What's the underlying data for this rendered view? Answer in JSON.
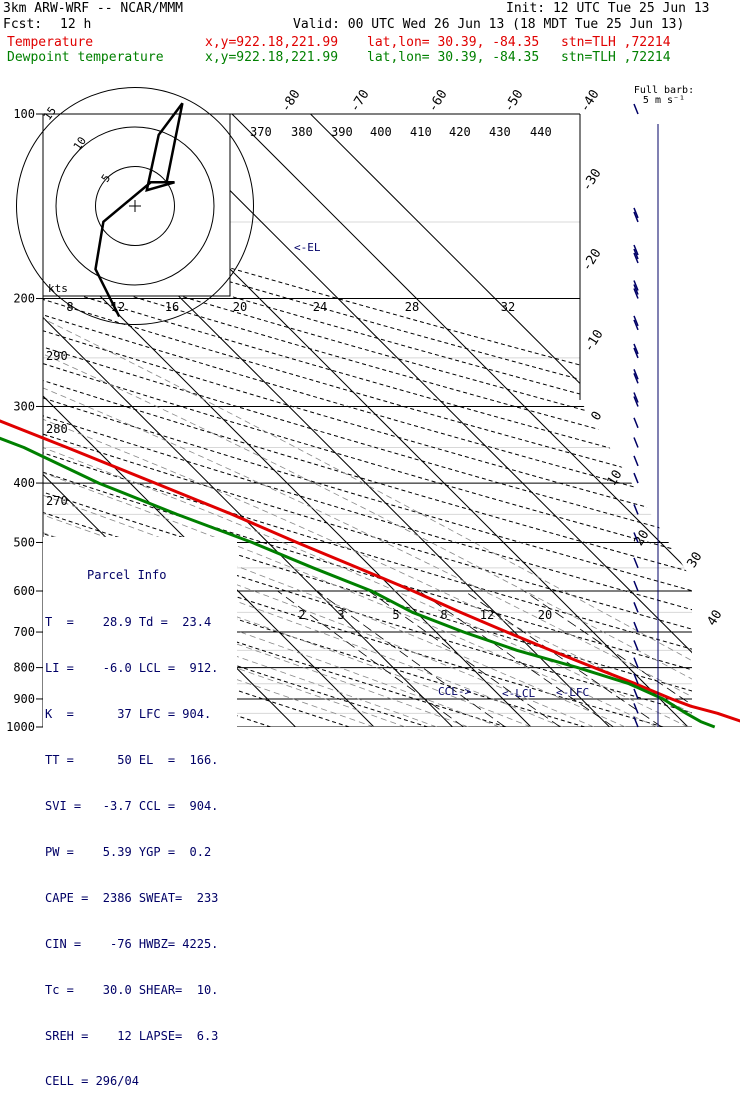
{
  "header": {
    "model": "3km ARW-WRF -- NCAR/MMM",
    "init": "Init: 12 UTC Tue 25 Jun 13",
    "fcst_label": "Fcst:",
    "fcst_value": "12 h",
    "valid": "Valid: 00 UTC Wed 26 Jun 13 (18 MDT Tue 25 Jun 13)",
    "temp_label": "Temperature",
    "dew_label": "Dewpoint temperature",
    "xy": "x,y=922.18,221.99",
    "latlon": "lat,lon= 30.39, -84.35",
    "stn": "stn=TLH ,72214"
  },
  "colors": {
    "temperature": "#e00000",
    "dewpoint": "#008000",
    "text_blue": "#000066",
    "wind": "#000066"
  },
  "parcel_info": {
    "title": "Parcel Info",
    "rows": [
      "T  =    28.9 Td =  23.4",
      "LI =    -6.0 LCL =  912.",
      "K  =      37 LFC = 904.",
      "TT =      50 EL  =  166.",
      "SVI =   -3.7 CCL =  904.",
      "PW =    5.39 YGP =  0.2",
      "CAPE =  2386 SWEAT=  233",
      "CIN =    -76 HWBZ= 4225.",
      "Tc =    30.0 SHEAR=  10.",
      "SREH =    12 LAPSE=  6.3",
      "CELL = 296/04"
    ]
  },
  "barb_legend": {
    "line1": "Full barb:",
    "line2": "5 m s⁻¹"
  },
  "chart_data": {
    "type": "line",
    "title": "",
    "pressure_levels": [
      100,
      200,
      300,
      400,
      500,
      600,
      700,
      800,
      900,
      1000
    ],
    "pressure_tick_labels": [
      "100",
      "200",
      "300",
      "400",
      "500",
      "600",
      "700",
      "800",
      "900",
      "1000"
    ],
    "isotherm_labels": [
      "-80",
      "-70",
      "-60",
      "-50",
      "-40",
      "-30",
      "-20",
      "-10",
      "0",
      "10",
      "20",
      "30",
      "40"
    ],
    "mixing_ratio_labels": [
      "2",
      "3",
      "5",
      "8",
      "12",
      "20"
    ],
    "theta_labels": [
      "290",
      "280",
      "270"
    ],
    "theta_e_labels": [
      "370",
      "380",
      "390",
      "400",
      "410",
      "420",
      "430",
      "440"
    ],
    "annotations": [
      "<-EL",
      "CCL->",
      "<-LCL",
      "<-LFC"
    ],
    "series": [
      {
        "name": "Temperature",
        "points": [
          [
            1000,
            28.9
          ],
          [
            950,
            25.5
          ],
          [
            925,
            23.0
          ],
          [
            900,
            21.5
          ],
          [
            850,
            18.8
          ],
          [
            800,
            15.6
          ],
          [
            750,
            12.3
          ],
          [
            700,
            9.0
          ],
          [
            650,
            5.6
          ],
          [
            600,
            2.3
          ],
          [
            550,
            -1.8
          ],
          [
            500,
            -6.3
          ],
          [
            450,
            -11.0
          ],
          [
            400,
            -16.8
          ],
          [
            350,
            -23.5
          ],
          [
            300,
            -31.5
          ],
          [
            250,
            -41.5
          ],
          [
            200,
            -53.0
          ],
          [
            180,
            -58.0
          ],
          [
            160,
            -64.0
          ],
          [
            150,
            -67.0
          ],
          [
            130,
            -70.0
          ],
          [
            115,
            -70.5
          ],
          [
            100,
            -72.0
          ]
        ]
      },
      {
        "name": "Dewpoint temperature",
        "points": [
          [
            1000,
            23.4
          ],
          [
            980,
            22.3
          ],
          [
            950,
            21.5
          ],
          [
            900,
            20.4
          ],
          [
            850,
            18.0
          ],
          [
            800,
            13.5
          ],
          [
            750,
            8.0
          ],
          [
            700,
            3.5
          ],
          [
            650,
            -0.5
          ],
          [
            600,
            -3.0
          ],
          [
            550,
            -7.5
          ],
          [
            500,
            -12.0
          ],
          [
            450,
            -18.0
          ],
          [
            400,
            -24.0
          ],
          [
            350,
            -29.0
          ],
          [
            300,
            -37.5
          ],
          [
            250,
            -48.5
          ],
          [
            200,
            -63.0
          ],
          [
            180,
            -70.0
          ],
          [
            150,
            -80.0
          ],
          [
            120,
            -88.0
          ],
          [
            100,
            -90.0
          ]
        ]
      }
    ],
    "hodograph": {
      "ring_labels": [
        "5",
        "10",
        "15"
      ],
      "axis_labels": [
        "8",
        "12",
        "16",
        "20",
        "24",
        "28",
        "32"
      ],
      "units": "kts",
      "points": [
        [
          -2.0,
          -14.0
        ],
        [
          -5.0,
          -8.0
        ],
        [
          -4.0,
          -2.0
        ],
        [
          2.0,
          3.0
        ],
        [
          5.0,
          3.0
        ],
        [
          1.5,
          2.0
        ],
        [
          3.0,
          9.0
        ],
        [
          6.0,
          13.0
        ],
        [
          5.0,
          8.0
        ],
        [
          4.0,
          3.0
        ]
      ]
    },
    "wind_profile": [
      {
        "p": 100,
        "spd": 5
      },
      {
        "p": 125,
        "spd": 0
      },
      {
        "p": 150,
        "spd": 10
      },
      {
        "p": 175,
        "spd": 15
      },
      {
        "p": 200,
        "spd": 15
      },
      {
        "p": 225,
        "spd": 10
      },
      {
        "p": 250,
        "spd": 10
      },
      {
        "p": 275,
        "spd": 10
      },
      {
        "p": 300,
        "spd": 10
      },
      {
        "p": 325,
        "spd": 5
      },
      {
        "p": 350,
        "spd": 5
      },
      {
        "p": 375,
        "spd": 5
      },
      {
        "p": 400,
        "spd": 5
      },
      {
        "p": 450,
        "spd": 5
      },
      {
        "p": 500,
        "spd": 5
      },
      {
        "p": 550,
        "spd": 5
      },
      {
        "p": 600,
        "spd": 5
      },
      {
        "p": 650,
        "spd": 5
      },
      {
        "p": 700,
        "spd": 5
      },
      {
        "p": 750,
        "spd": 5
      },
      {
        "p": 800,
        "spd": 5
      },
      {
        "p": 850,
        "spd": 5
      },
      {
        "p": 900,
        "spd": 5
      },
      {
        "p": 950,
        "spd": 5
      },
      {
        "p": 1000,
        "spd": 5
      }
    ],
    "grid": true
  }
}
